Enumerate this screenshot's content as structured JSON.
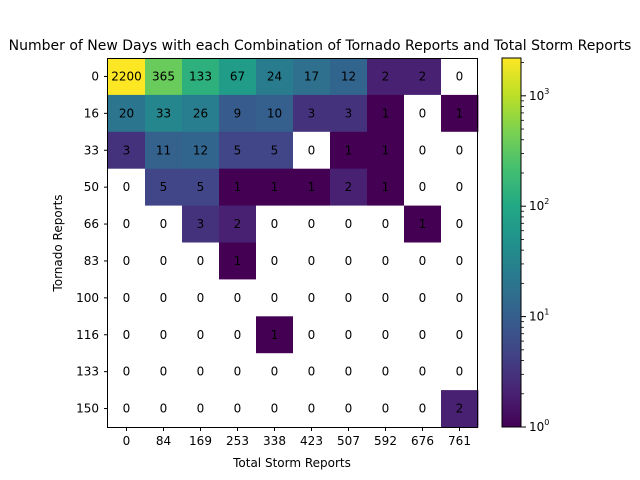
{
  "chart_data": {
    "type": "heatmap",
    "title": "Number of New Days with each Combination of Tornado Reports and Total Storm Reports",
    "xlabel": "Total Storm Reports",
    "ylabel": "Tornado Reports",
    "x_ticks": [
      "0",
      "84",
      "169",
      "253",
      "338",
      "423",
      "507",
      "592",
      "676",
      "761"
    ],
    "y_ticks": [
      "0",
      "16",
      "33",
      "50",
      "66",
      "83",
      "100",
      "116",
      "133",
      "150"
    ],
    "values": [
      [
        2200,
        365,
        133,
        67,
        24,
        17,
        12,
        2,
        2,
        0
      ],
      [
        20,
        33,
        26,
        9,
        10,
        3,
        3,
        1,
        0,
        1
      ],
      [
        3,
        11,
        12,
        5,
        5,
        0,
        1,
        1,
        0,
        0
      ],
      [
        0,
        5,
        5,
        1,
        1,
        1,
        2,
        1,
        0,
        0
      ],
      [
        0,
        0,
        3,
        2,
        0,
        0,
        0,
        0,
        1,
        0
      ],
      [
        0,
        0,
        0,
        1,
        0,
        0,
        0,
        0,
        0,
        0
      ],
      [
        0,
        0,
        0,
        0,
        0,
        0,
        0,
        0,
        0,
        0
      ],
      [
        0,
        0,
        0,
        0,
        1,
        0,
        0,
        0,
        0,
        0
      ],
      [
        0,
        0,
        0,
        0,
        0,
        0,
        0,
        0,
        0,
        0
      ],
      [
        0,
        0,
        0,
        0,
        0,
        0,
        0,
        0,
        0,
        2
      ]
    ],
    "colorbar": {
      "scale": "log",
      "range": [
        1,
        2200
      ],
      "colormap": "viridis",
      "ticks": [
        {
          "value": 1,
          "base": "10",
          "exp": "0"
        },
        {
          "value": 10,
          "base": "10",
          "exp": "1"
        },
        {
          "value": 100,
          "base": "10",
          "exp": "2"
        },
        {
          "value": 1000,
          "base": "10",
          "exp": "3"
        }
      ]
    },
    "zero_color": "#ffffff",
    "grid": false,
    "legend": "none"
  }
}
